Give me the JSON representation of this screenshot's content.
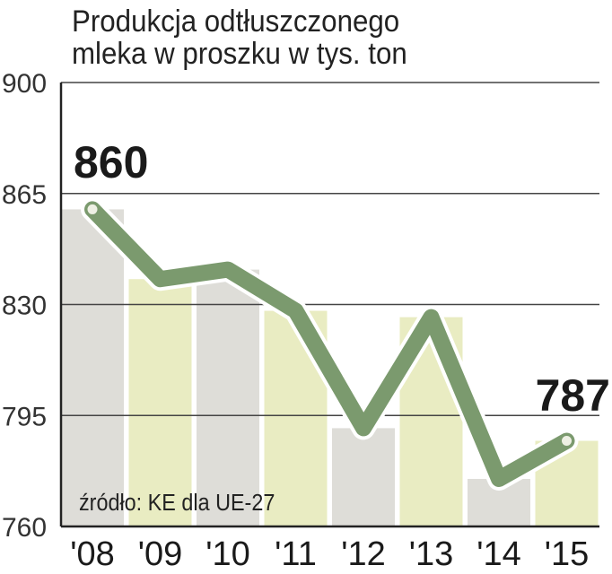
{
  "title_line1": "Produkcja odtłuszczonego",
  "title_line2": "mleka w proszku w tys. ton",
  "source": "źródło: KE dla UE-27",
  "chart_data": {
    "type": "line",
    "title": "Produkcja odtłuszczonego mleka w proszku w tys. ton",
    "categories": [
      "'08",
      "'09",
      "'10",
      "'11",
      "'12",
      "'13",
      "'14",
      "'15"
    ],
    "values": [
      860,
      838,
      841,
      828,
      791,
      826,
      775,
      787
    ],
    "yticks": [
      900,
      865,
      830,
      795,
      760
    ],
    "ylim": [
      760,
      900
    ],
    "labels": [
      {
        "index": 0,
        "text": "860"
      },
      {
        "index": 7,
        "text": "787"
      }
    ],
    "grid": true,
    "colors": {
      "line": "#7b9a6e",
      "line_outline": "#ffffff",
      "bar_gray": "#deddd8",
      "bar_green": "#e9ecc2",
      "grid": "#444444",
      "text": "#1a1a1a"
    }
  }
}
